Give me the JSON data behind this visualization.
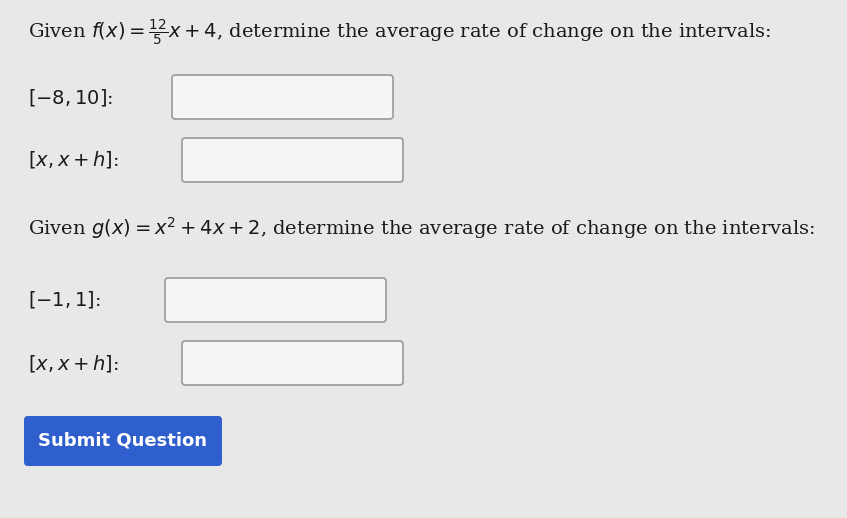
{
  "bg_color": "#e8e8e8",
  "text_color": "#1a1a1a",
  "button_text": "Submit Question",
  "button_color": "#2f5fcc",
  "button_text_color": "#ffffff",
  "box_face_color": "#f5f5f5",
  "box_edge_color": "#999999",
  "font_size_title": 14,
  "font_size_label": 14,
  "font_size_button": 13
}
